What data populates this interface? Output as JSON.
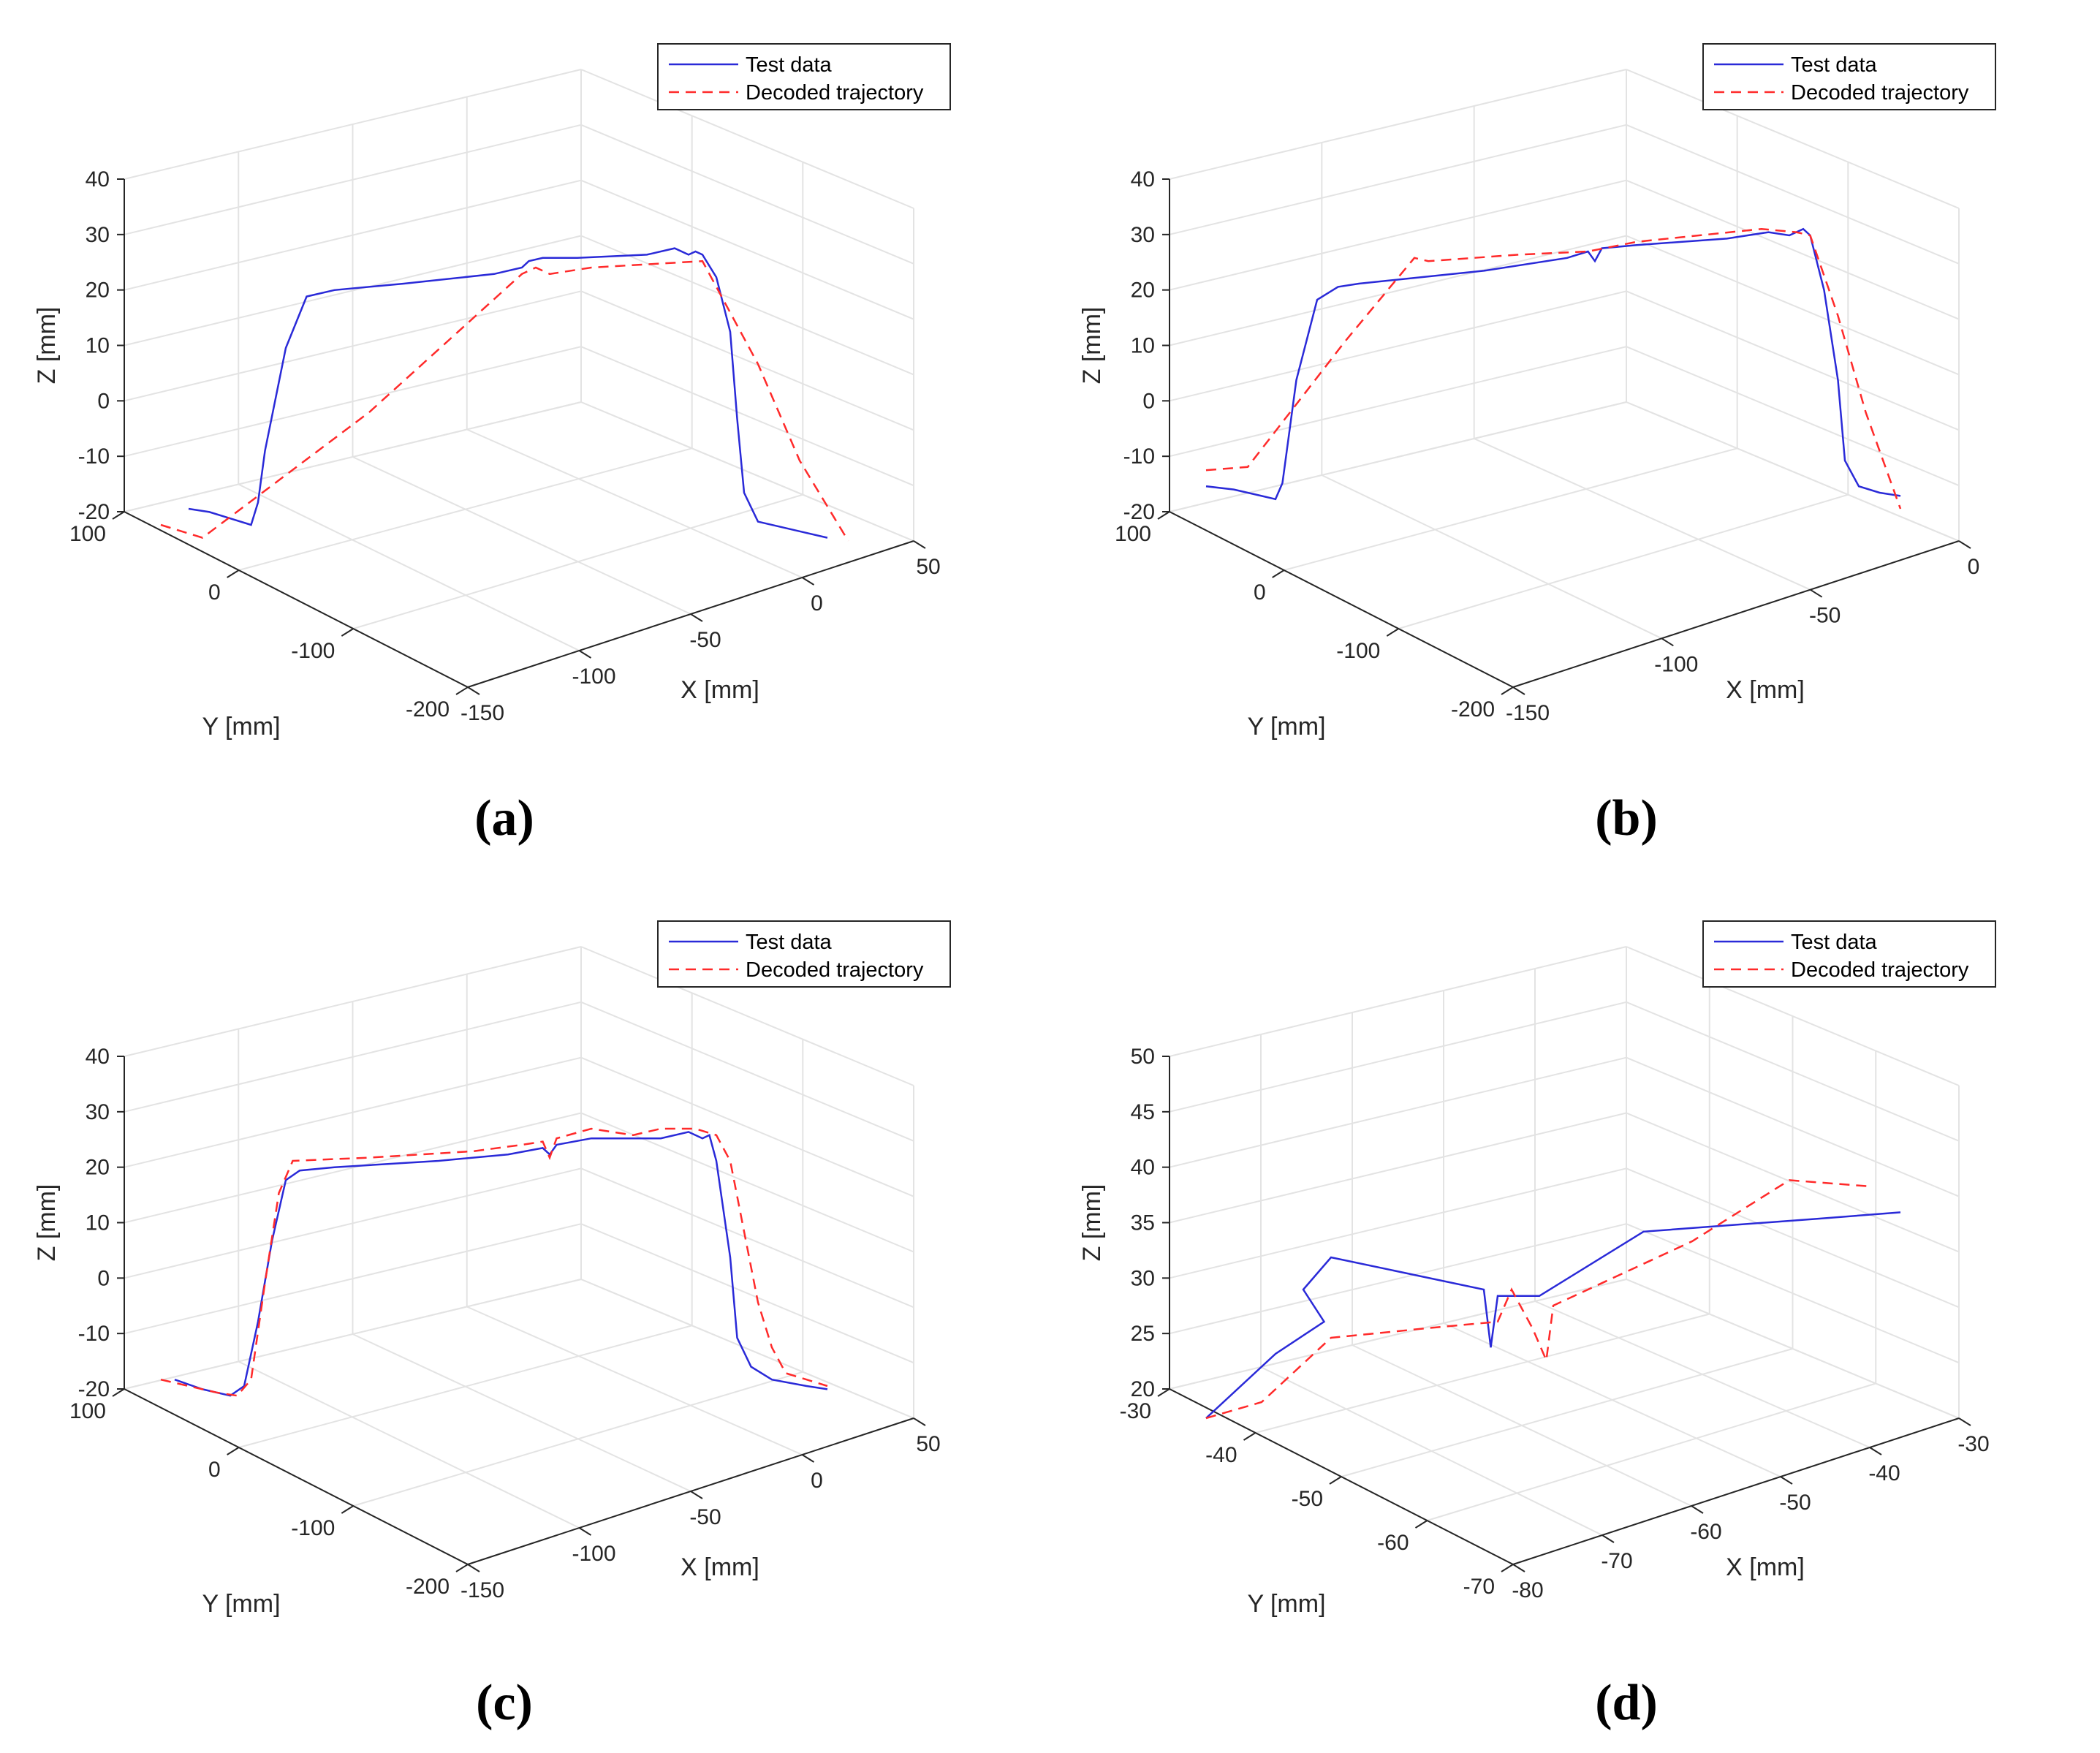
{
  "colors": {
    "test": "#2a2ad8",
    "decoded": "#ff2a2a",
    "grid": "#e3e3e3",
    "axis": "#262626"
  },
  "chart_data": [
    {
      "type": "line3d",
      "panel_label": "(a)",
      "xlabel": "X [mm]",
      "ylabel": "Y [mm]",
      "zlabel": "Z [mm]",
      "x_ticks": [
        "-150",
        "-100",
        "-50",
        "0",
        "50"
      ],
      "y_ticks": [
        "100",
        "0",
        "-100",
        "-200"
      ],
      "z_ticks": [
        "40",
        "30",
        "20",
        "10",
        "0",
        "-10",
        "-20"
      ],
      "legend": {
        "entries": [
          "Test data",
          "Decoded trajectory"
        ],
        "location": "top-right"
      },
      "series": [
        {
          "name": "Test data",
          "style": "solid",
          "points": [
            [
              0.04,
              0.9
            ],
            [
              0.07,
              0.91
            ],
            [
              0.1,
              0.93
            ],
            [
              0.13,
              0.95
            ],
            [
              0.14,
              0.88
            ],
            [
              0.15,
              0.72
            ],
            [
              0.18,
              0.4
            ],
            [
              0.21,
              0.24
            ],
            [
              0.25,
              0.22
            ],
            [
              0.35,
              0.2
            ],
            [
              0.48,
              0.17
            ],
            [
              0.52,
              0.15
            ],
            [
              0.53,
              0.13
            ],
            [
              0.55,
              0.12
            ],
            [
              0.6,
              0.12
            ],
            [
              0.7,
              0.11
            ],
            [
              0.74,
              0.09
            ],
            [
              0.76,
              0.11
            ],
            [
              0.77,
              0.1
            ],
            [
              0.78,
              0.11
            ],
            [
              0.8,
              0.18
            ],
            [
              0.82,
              0.35
            ],
            [
              0.83,
              0.62
            ],
            [
              0.84,
              0.85
            ],
            [
              0.86,
              0.94
            ],
            [
              0.92,
              0.97
            ],
            [
              0.96,
              0.99
            ]
          ]
        },
        {
          "name": "Decoded trajectory",
          "style": "dashed",
          "points": [
            [
              0.0,
              0.95
            ],
            [
              0.06,
              0.99
            ],
            [
              0.3,
              0.6
            ],
            [
              0.52,
              0.17
            ],
            [
              0.54,
              0.15
            ],
            [
              0.56,
              0.17
            ],
            [
              0.62,
              0.15
            ],
            [
              0.78,
              0.13
            ],
            [
              0.86,
              0.45
            ],
            [
              0.92,
              0.75
            ],
            [
              0.99,
              1.0
            ]
          ]
        }
      ]
    },
    {
      "type": "line3d",
      "panel_label": "(b)",
      "xlabel": "X [mm]",
      "ylabel": "Y [mm]",
      "zlabel": "Z [mm]",
      "x_ticks": [
        "-150",
        "-100",
        "-50",
        "0"
      ],
      "y_ticks": [
        "100",
        "0",
        "-100",
        "-200"
      ],
      "z_ticks": [
        "40",
        "30",
        "20",
        "10",
        "0",
        "-10",
        "-20"
      ],
      "legend": {
        "entries": [
          "Test data",
          "Decoded trajectory"
        ],
        "location": "top-right"
      },
      "series": [
        {
          "name": "Test data",
          "style": "solid",
          "points": [
            [
              0.0,
              0.83
            ],
            [
              0.04,
              0.84
            ],
            [
              0.08,
              0.86
            ],
            [
              0.1,
              0.87
            ],
            [
              0.11,
              0.82
            ],
            [
              0.13,
              0.5
            ],
            [
              0.16,
              0.25
            ],
            [
              0.19,
              0.21
            ],
            [
              0.22,
              0.2
            ],
            [
              0.4,
              0.16
            ],
            [
              0.52,
              0.12
            ],
            [
              0.55,
              0.1
            ],
            [
              0.56,
              0.13
            ],
            [
              0.57,
              0.09
            ],
            [
              0.62,
              0.08
            ],
            [
              0.75,
              0.06
            ],
            [
              0.81,
              0.04
            ],
            [
              0.84,
              0.05
            ],
            [
              0.86,
              0.03
            ],
            [
              0.87,
              0.05
            ],
            [
              0.89,
              0.22
            ],
            [
              0.91,
              0.5
            ],
            [
              0.92,
              0.75
            ],
            [
              0.94,
              0.83
            ],
            [
              0.97,
              0.85
            ],
            [
              1.0,
              0.86
            ]
          ]
        },
        {
          "name": "Decoded trajectory",
          "style": "dashed",
          "points": [
            [
              0.0,
              0.78
            ],
            [
              0.06,
              0.77
            ],
            [
              0.2,
              0.38
            ],
            [
              0.3,
              0.12
            ],
            [
              0.32,
              0.13
            ],
            [
              0.45,
              0.11
            ],
            [
              0.55,
              0.1
            ],
            [
              0.62,
              0.07
            ],
            [
              0.8,
              0.03
            ],
            [
              0.85,
              0.04
            ],
            [
              0.87,
              0.05
            ],
            [
              0.91,
              0.3
            ],
            [
              0.95,
              0.6
            ],
            [
              1.0,
              0.9
            ]
          ]
        }
      ]
    },
    {
      "type": "line3d",
      "panel_label": "(c)",
      "xlabel": "X [mm]",
      "ylabel": "Y [mm]",
      "zlabel": "Z [mm]",
      "x_ticks": [
        "-150",
        "-100",
        "-50",
        "0",
        "50"
      ],
      "y_ticks": [
        "100",
        "0",
        "-100",
        "-200"
      ],
      "z_ticks": [
        "40",
        "30",
        "20",
        "10",
        "0",
        "-10",
        "-20"
      ],
      "legend": {
        "entries": [
          "Test data",
          "Decoded trajectory"
        ],
        "location": "top-right"
      },
      "series": [
        {
          "name": "Test data",
          "style": "solid",
          "points": [
            [
              0.02,
              0.88
            ],
            [
              0.06,
              0.91
            ],
            [
              0.1,
              0.93
            ],
            [
              0.12,
              0.9
            ],
            [
              0.14,
              0.7
            ],
            [
              0.16,
              0.45
            ],
            [
              0.18,
              0.26
            ],
            [
              0.2,
              0.23
            ],
            [
              0.25,
              0.22
            ],
            [
              0.4,
              0.2
            ],
            [
              0.5,
              0.18
            ],
            [
              0.55,
              0.16
            ],
            [
              0.56,
              0.18
            ],
            [
              0.57,
              0.15
            ],
            [
              0.62,
              0.13
            ],
            [
              0.72,
              0.13
            ],
            [
              0.76,
              0.11
            ],
            [
              0.78,
              0.13
            ],
            [
              0.79,
              0.12
            ],
            [
              0.8,
              0.2
            ],
            [
              0.82,
              0.5
            ],
            [
              0.83,
              0.75
            ],
            [
              0.85,
              0.84
            ],
            [
              0.88,
              0.88
            ],
            [
              0.93,
              0.9
            ],
            [
              0.96,
              0.91
            ]
          ]
        },
        {
          "name": "Decoded trajectory",
          "style": "dashed",
          "points": [
            [
              0.0,
              0.88
            ],
            [
              0.04,
              0.9
            ],
            [
              0.08,
              0.92
            ],
            [
              0.11,
              0.93
            ],
            [
              0.13,
              0.88
            ],
            [
              0.15,
              0.58
            ],
            [
              0.17,
              0.3
            ],
            [
              0.19,
              0.2
            ],
            [
              0.3,
              0.19
            ],
            [
              0.45,
              0.17
            ],
            [
              0.52,
              0.15
            ],
            [
              0.55,
              0.14
            ],
            [
              0.56,
              0.19
            ],
            [
              0.57,
              0.13
            ],
            [
              0.62,
              0.1
            ],
            [
              0.68,
              0.12
            ],
            [
              0.72,
              0.1
            ],
            [
              0.77,
              0.1
            ],
            [
              0.8,
              0.12
            ],
            [
              0.82,
              0.2
            ],
            [
              0.84,
              0.42
            ],
            [
              0.86,
              0.64
            ],
            [
              0.88,
              0.78
            ],
            [
              0.9,
              0.86
            ],
            [
              0.93,
              0.88
            ],
            [
              0.96,
              0.9
            ]
          ]
        }
      ]
    },
    {
      "type": "line3d",
      "panel_label": "(d)",
      "xlabel": "X [mm]",
      "ylabel": "Y [mm]",
      "zlabel": "Z [mm]",
      "x_ticks": [
        "-80",
        "-70",
        "-60",
        "-50",
        "-40",
        "-30"
      ],
      "y_ticks": [
        "-30",
        "-40",
        "-50",
        "-60",
        "-70"
      ],
      "z_ticks": [
        "50",
        "45",
        "40",
        "35",
        "30",
        "25",
        "20"
      ],
      "legend": {
        "entries": [
          "Test data",
          "Decoded trajectory"
        ],
        "location": "top-right"
      },
      "series": [
        {
          "name": "Test data",
          "style": "solid",
          "points": [
            [
              0.0,
              1.0
            ],
            [
              0.1,
              0.8
            ],
            [
              0.17,
              0.7
            ],
            [
              0.14,
              0.6
            ],
            [
              0.18,
              0.5
            ],
            [
              0.4,
              0.6
            ],
            [
              0.41,
              0.78
            ],
            [
              0.42,
              0.62
            ],
            [
              0.48,
              0.62
            ],
            [
              0.63,
              0.42
            ],
            [
              0.88,
              0.38
            ],
            [
              1.0,
              0.36
            ]
          ]
        },
        {
          "name": "Decoded trajectory",
          "style": "dashed",
          "points": [
            [
              0.0,
              1.0
            ],
            [
              0.08,
              0.95
            ],
            [
              0.18,
              0.75
            ],
            [
              0.32,
              0.72
            ],
            [
              0.42,
              0.7
            ],
            [
              0.44,
              0.6
            ],
            [
              0.47,
              0.72
            ],
            [
              0.49,
              0.82
            ],
            [
              0.5,
              0.65
            ],
            [
              0.7,
              0.45
            ],
            [
              0.84,
              0.26
            ],
            [
              0.96,
              0.28
            ]
          ]
        }
      ]
    }
  ]
}
